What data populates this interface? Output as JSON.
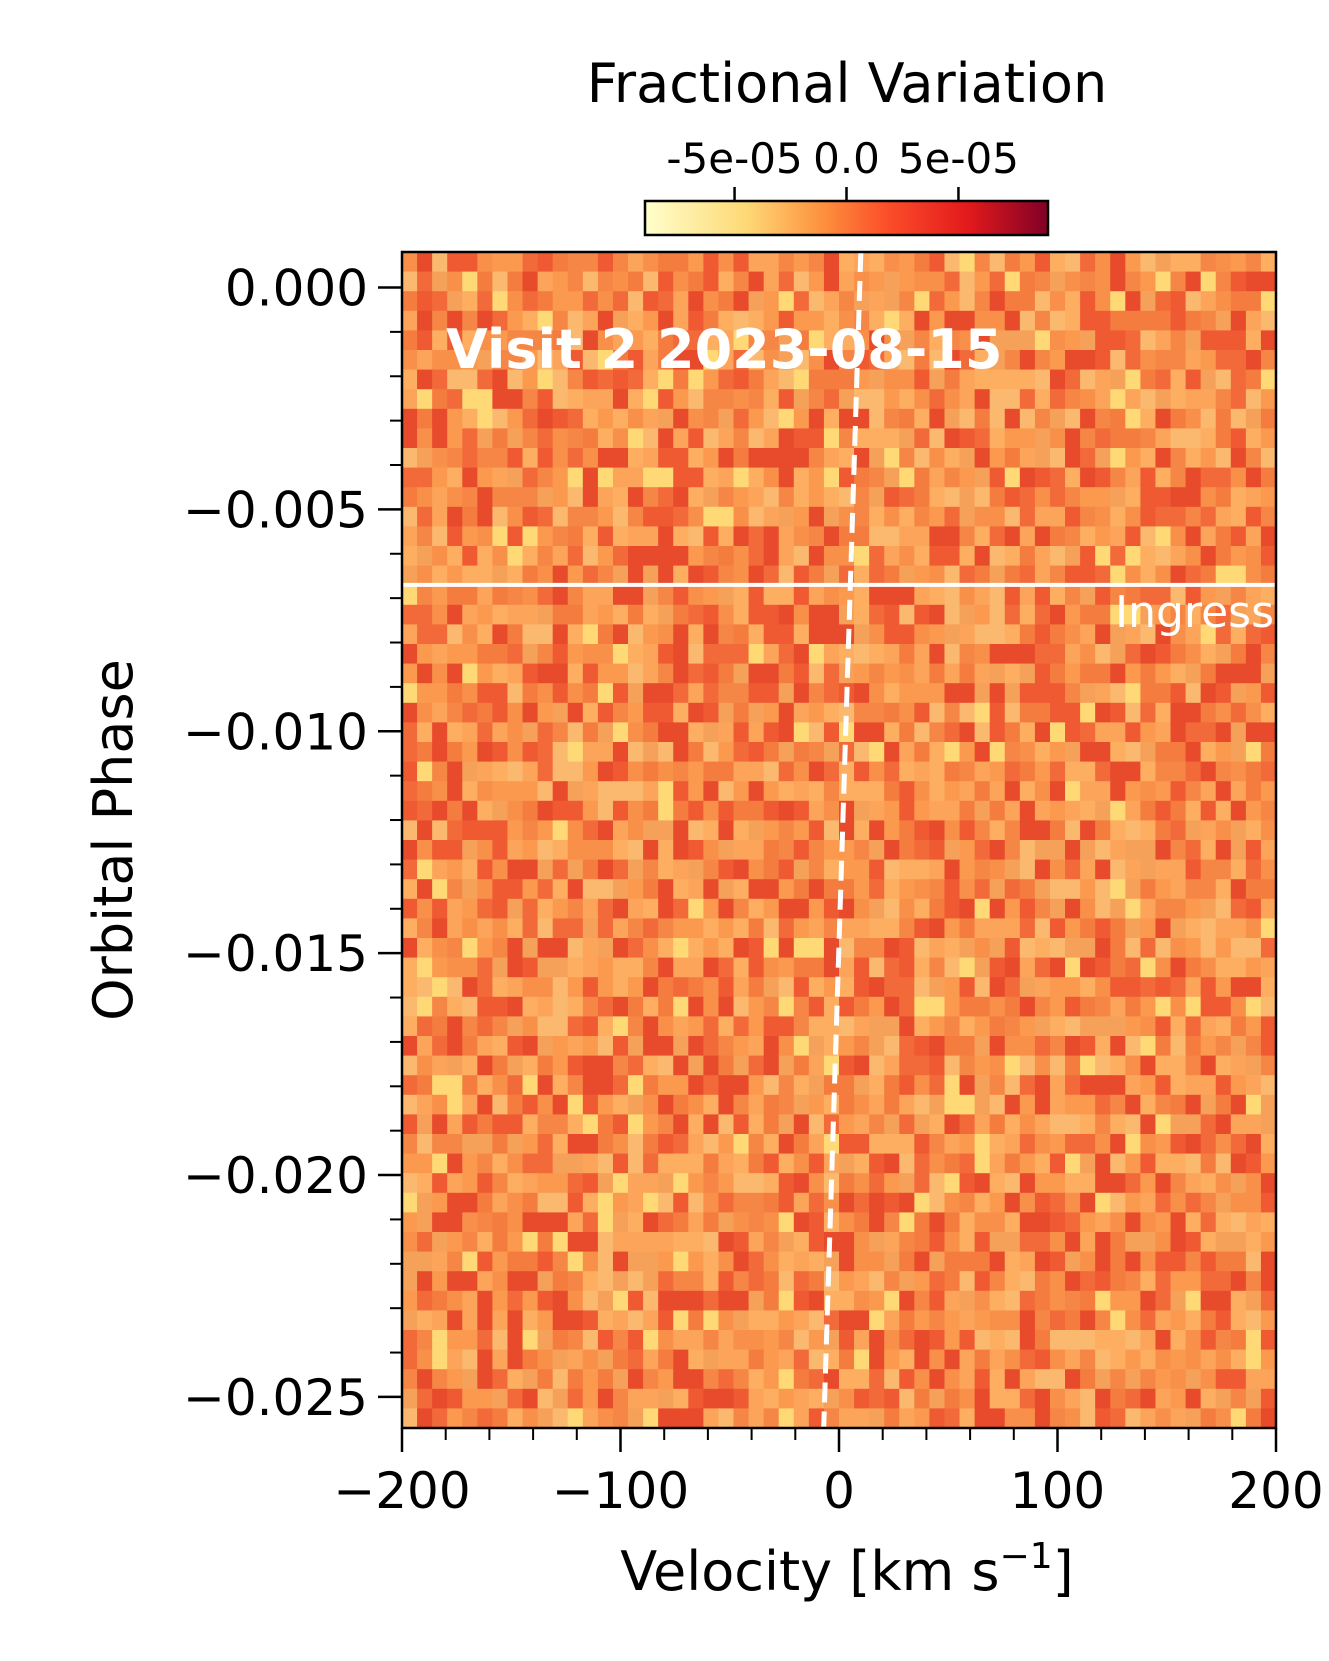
{
  "chart_data": {
    "type": "heatmap",
    "annotation": "Visit 2 2023-08-15",
    "xlabel": "Velocity [km s⁻¹]",
    "xlabel_main": "Velocity [km s",
    "xlabel_sup": "−1",
    "xlabel_close": "]",
    "ylabel": "Orbital Phase",
    "xlim": [
      -200,
      200
    ],
    "ylim": [
      -0.0257,
      0.0008
    ],
    "x_ticks": [
      -200,
      -100,
      0,
      100,
      200
    ],
    "x_tick_labels": [
      "−200",
      "−100",
      "0",
      "100",
      "200"
    ],
    "y_ticks": [
      0.0,
      -0.005,
      -0.01,
      -0.015,
      -0.02,
      -0.025
    ],
    "y_tick_labels": [
      "0.000",
      "−0.005",
      "−0.010",
      "−0.015",
      "−0.020",
      "−0.025"
    ],
    "colorbar": {
      "label": "Fractional Variation",
      "range": [
        -9e-05,
        9e-05
      ],
      "ticks": [
        -5e-05,
        0.0,
        5e-05
      ],
      "tick_labels": [
        "-5e-05",
        "0.0",
        "5e-05"
      ],
      "colormap": "YlOrRd",
      "orientation": "horizontal",
      "location": "top"
    },
    "ingress": {
      "phase": -0.0067,
      "label": "Ingress",
      "color": "#ffffff"
    },
    "planet_trail": {
      "style": "dashed",
      "color": "#ffffff",
      "points": [
        [
          10,
          0.0008
        ],
        [
          -7,
          -0.0257
        ]
      ]
    },
    "grid": false
  }
}
